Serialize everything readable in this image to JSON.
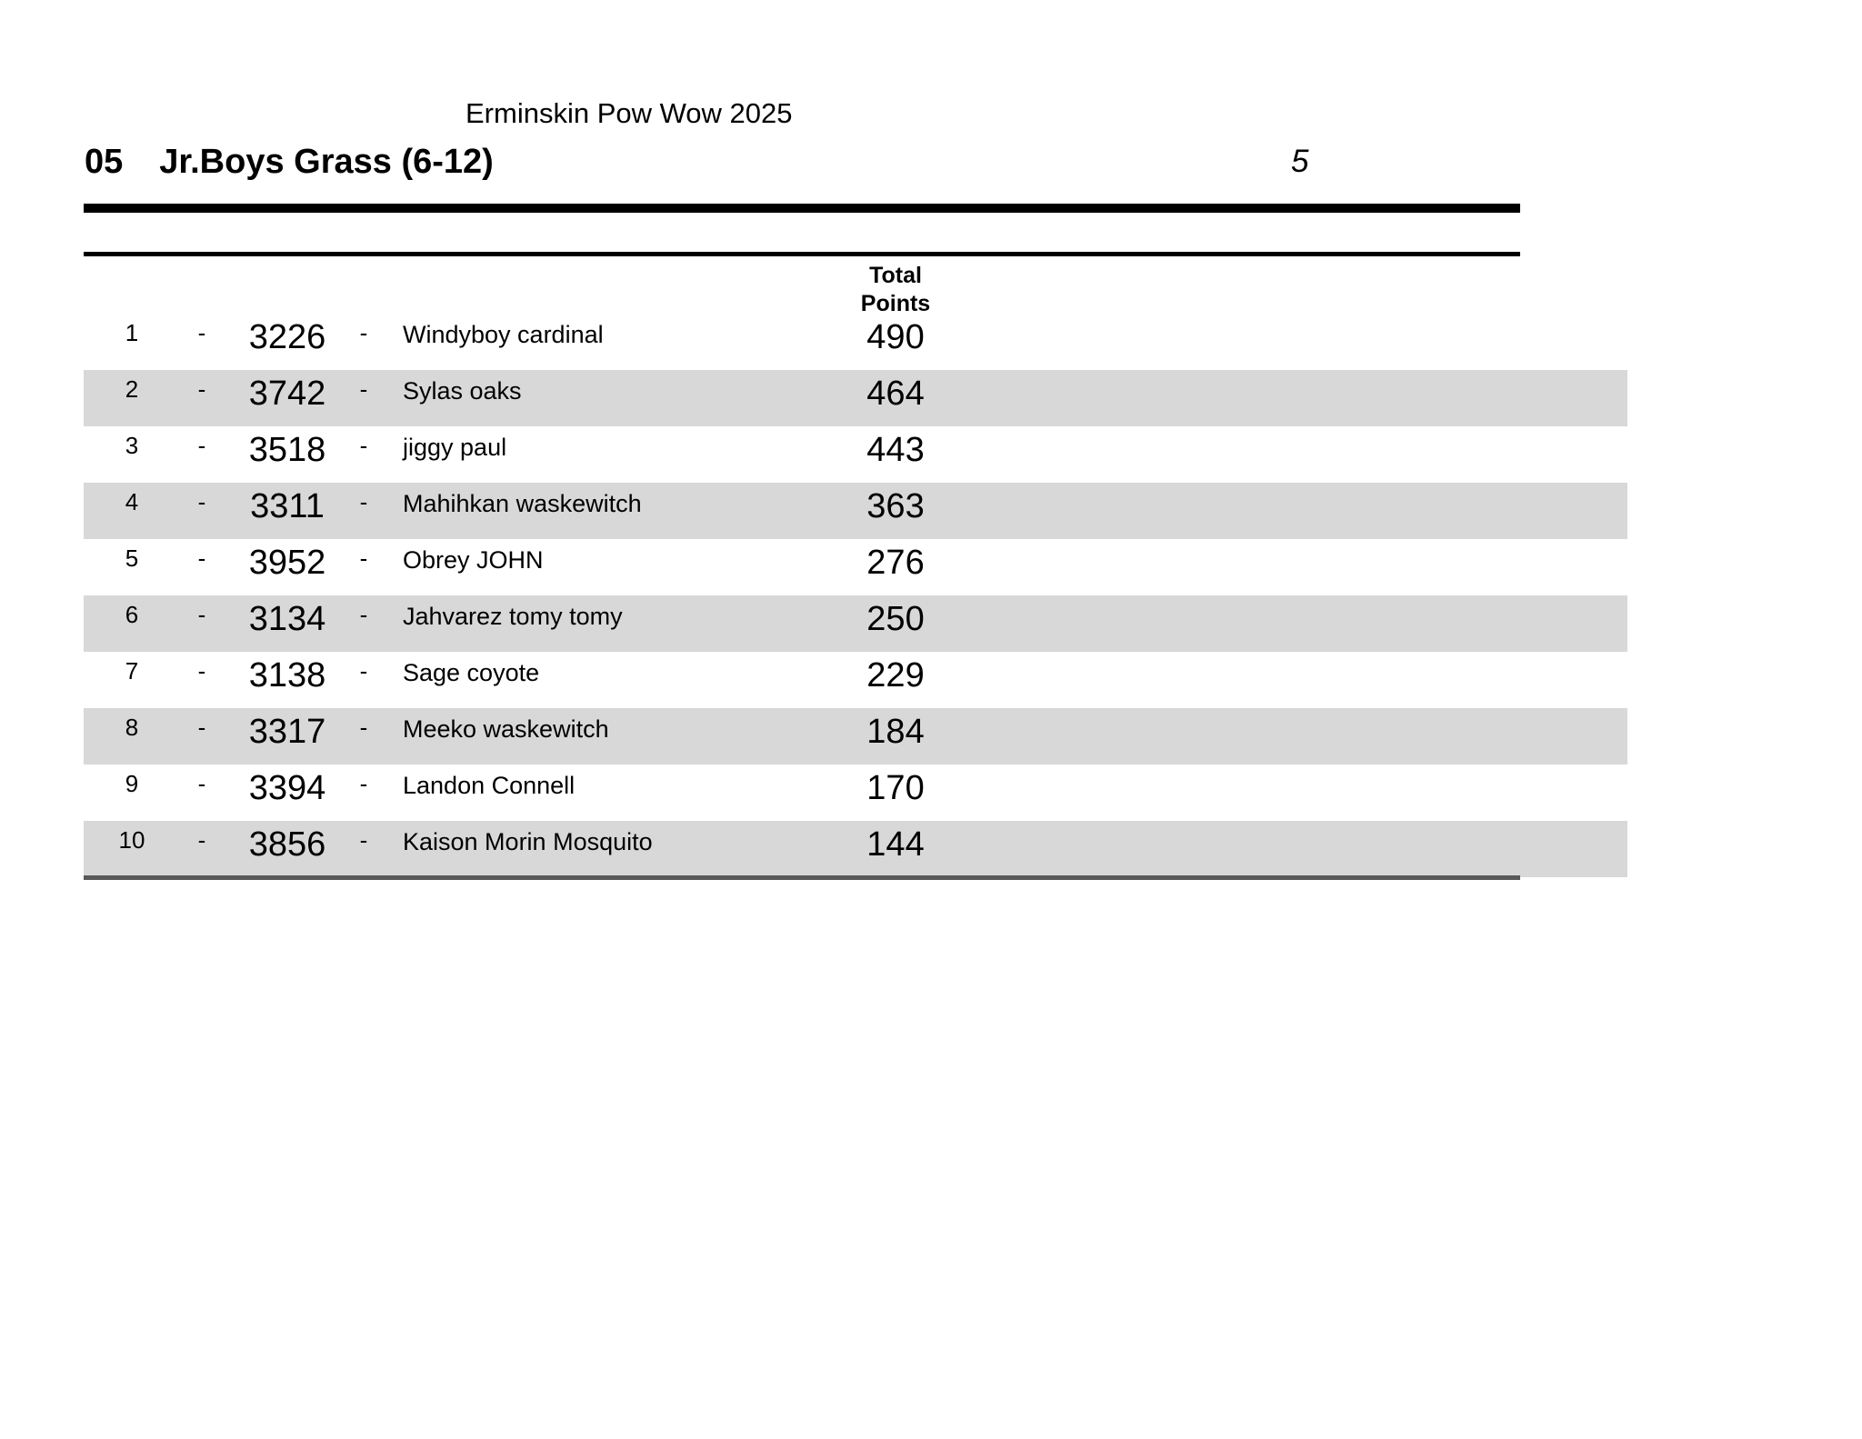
{
  "page": {
    "event_title": "Erminskin Pow Wow 2025",
    "category_number": "05",
    "category_name": "Jr.Boys Grass (6-12)",
    "page_number": "5"
  },
  "table": {
    "points_header": [
      "Total",
      "Points"
    ],
    "separator": "-",
    "rows": [
      {
        "rank": "1",
        "number": "3226",
        "name": "Windyboy cardinal",
        "points": "490"
      },
      {
        "rank": "2",
        "number": "3742",
        "name": "Sylas oaks",
        "points": "464"
      },
      {
        "rank": "3",
        "number": "3518",
        "name": "jiggy paul",
        "points": "443"
      },
      {
        "rank": "4",
        "number": "3311",
        "name": "Mahihkan waskewitch",
        "points": "363"
      },
      {
        "rank": "5",
        "number": "3952",
        "name": "Obrey JOHN",
        "points": "276"
      },
      {
        "rank": "6",
        "number": "3134",
        "name": "Jahvarez tomy tomy",
        "points": "250"
      },
      {
        "rank": "7",
        "number": "3138",
        "name": "Sage coyote",
        "points": "229"
      },
      {
        "rank": "8",
        "number": "3317",
        "name": "Meeko waskewitch",
        "points": "184"
      },
      {
        "rank": "9",
        "number": "3394",
        "name": "Landon Connell",
        "points": "170"
      },
      {
        "rank": "10",
        "number": "3856",
        "name": "Kaison Morin Mosquito",
        "points": "144"
      }
    ]
  },
  "colors": {
    "row_stripe": "#d8d8d8",
    "rule": "#000000",
    "bottom_rule": "#595959"
  }
}
